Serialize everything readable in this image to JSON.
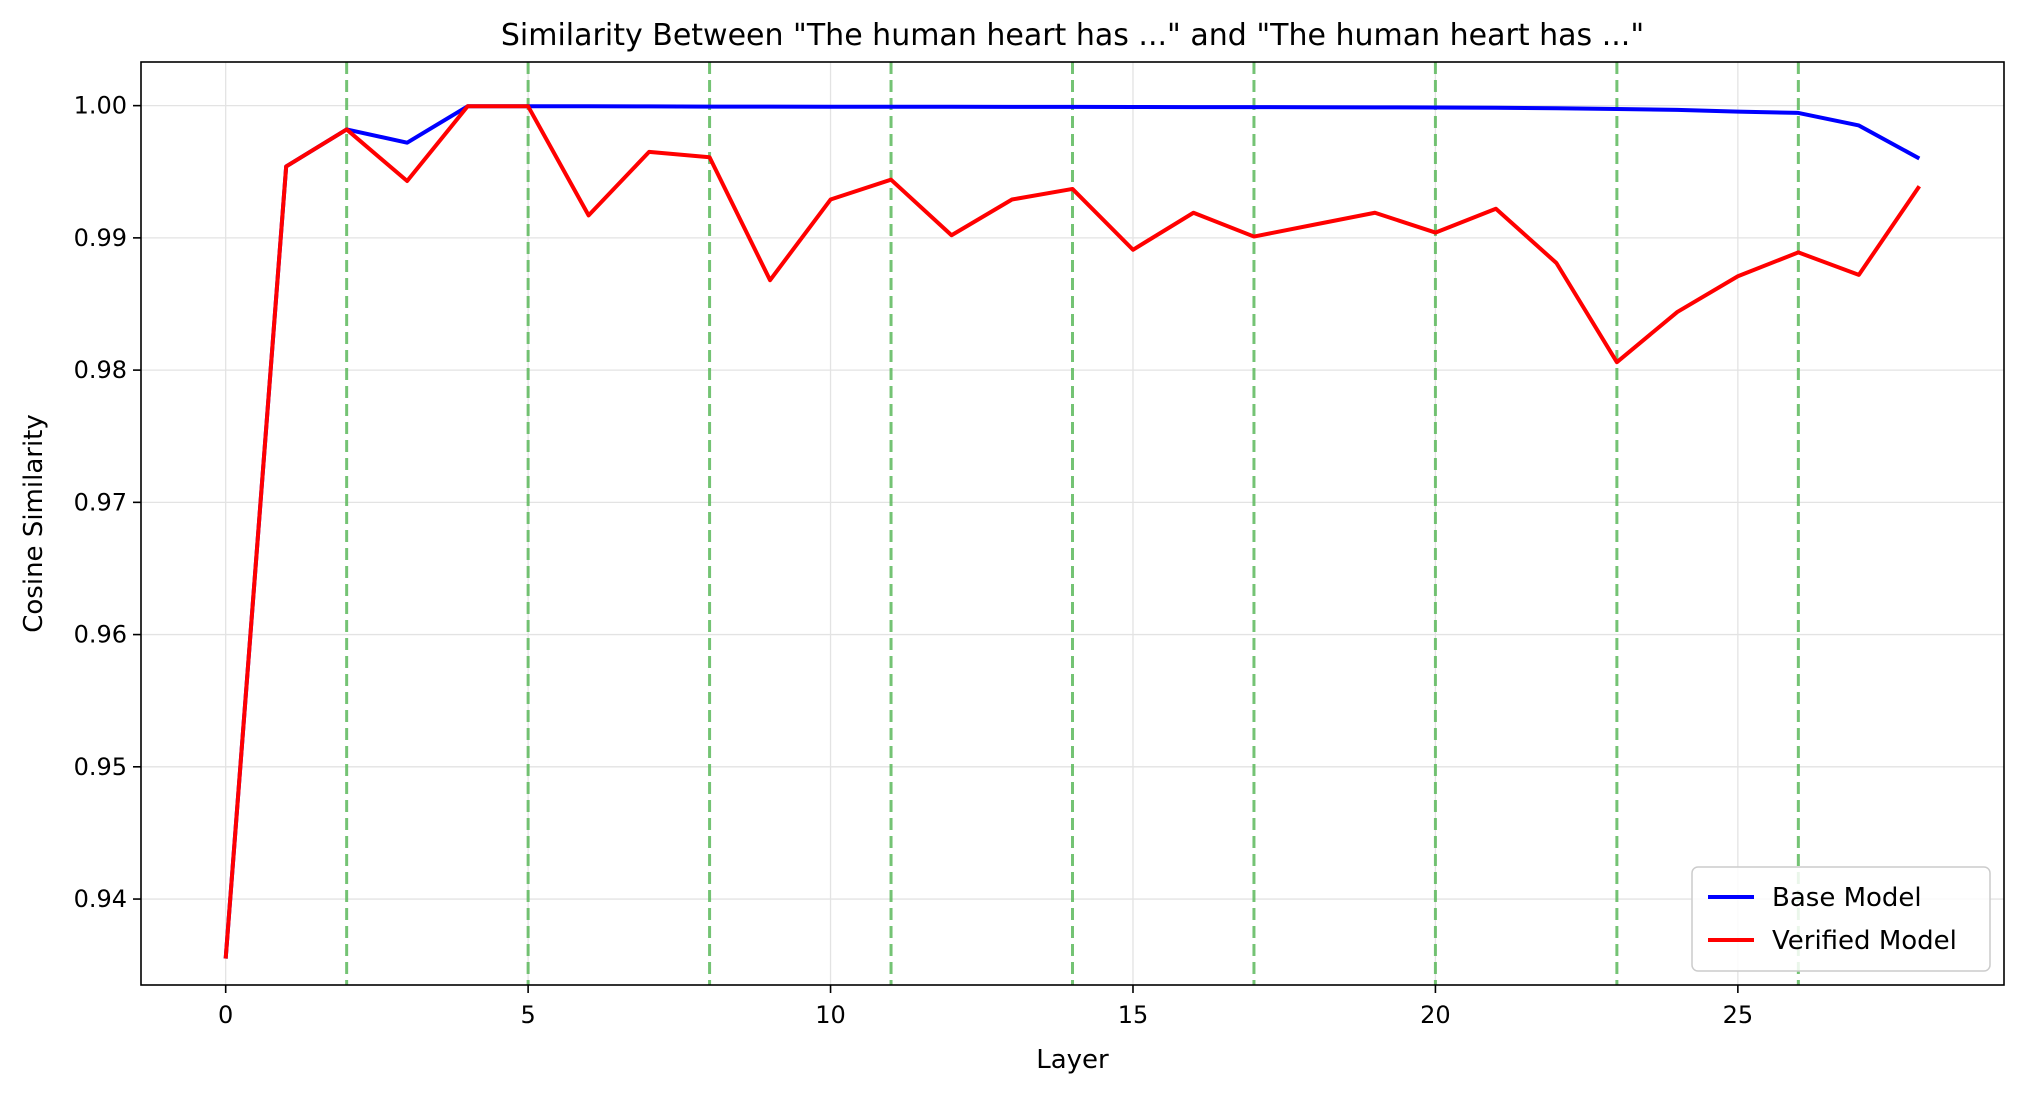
{
  "chart_data": {
    "type": "line",
    "title": "Similarity Between \"The human heart has ...\" and \"The human heart has ...\"",
    "xlabel": "Layer",
    "ylabel": "Cosine Similarity",
    "xlim": [
      -1.4,
      29.4
    ],
    "ylim": [
      0.9335,
      1.0033
    ],
    "xticks": [
      0,
      5,
      10,
      15,
      20,
      25
    ],
    "yticks": [
      0.94,
      0.95,
      0.96,
      0.97,
      0.98,
      0.99,
      1.0
    ],
    "ytick_labels": [
      "0.94",
      "0.95",
      "0.96",
      "0.97",
      "0.98",
      "0.99",
      "1.00"
    ],
    "grid": true,
    "legend_position": "lower-right",
    "vertical_markers": [
      2,
      5,
      8,
      11,
      14,
      17,
      20,
      23,
      26
    ],
    "vertical_marker_color": "#5cb85c",
    "x": [
      0,
      1,
      2,
      3,
      4,
      5,
      6,
      7,
      8,
      9,
      10,
      11,
      12,
      13,
      14,
      15,
      16,
      17,
      18,
      19,
      20,
      21,
      22,
      23,
      24,
      25,
      26,
      27,
      28
    ],
    "series": [
      {
        "name": "Base Model",
        "color": "#0000ff",
        "values": [
          0.9355,
          0.9954,
          0.9982,
          0.9972,
          0.99995,
          0.99995,
          0.99995,
          0.99994,
          0.99993,
          0.99993,
          0.99992,
          0.99992,
          0.99992,
          0.99991,
          0.99991,
          0.9999,
          0.99989,
          0.99989,
          0.99988,
          0.99987,
          0.99986,
          0.99984,
          0.9998,
          0.99975,
          0.99968,
          0.99955,
          0.99945,
          0.9985,
          0.996
        ]
      },
      {
        "name": "Verified Model",
        "color": "#ff0000",
        "values": [
          0.9355,
          0.9954,
          0.9982,
          0.9943,
          0.99995,
          0.99995,
          0.9917,
          0.9965,
          0.9961,
          0.9868,
          0.9929,
          0.9944,
          0.9902,
          0.9929,
          0.9937,
          0.9891,
          0.9919,
          0.9901,
          0.991,
          0.9919,
          0.9904,
          0.9922,
          0.9881,
          0.9806,
          0.9844,
          0.9871,
          0.9889,
          0.9872,
          0.9939
        ]
      }
    ]
  }
}
